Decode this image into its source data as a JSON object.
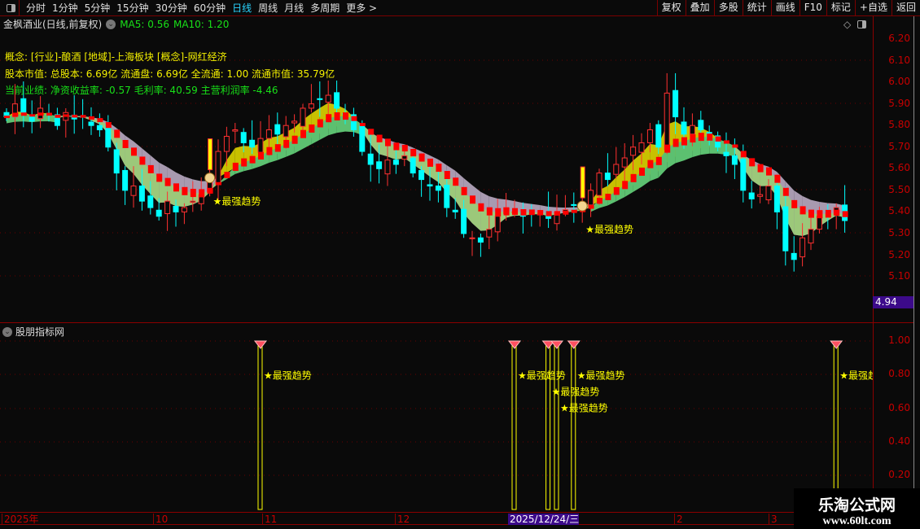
{
  "toolbar": {
    "periods": [
      "分时",
      "1分钟",
      "5分钟",
      "15分钟",
      "30分钟",
      "60分钟",
      "日线",
      "周线",
      "月线",
      "多周期",
      "更多 >"
    ],
    "active": "日线",
    "actions": [
      "复权",
      "叠加",
      "多股",
      "统计",
      "画线",
      "F10",
      "标记",
      "+自选",
      "返回"
    ]
  },
  "header": {
    "title": "金枫酒业(日线,前复权)",
    "ma5": "MA5: 0.56",
    "ma10": "MA10: 1.20"
  },
  "info": {
    "concept": "概念: [行业]-酿酒 [地域]-上海板块 [概念]-网红经济",
    "capital": "股本市值: 总股本: 6.69亿 流通盘: 6.69亿 全流通: 1.00 流通市值: 35.79亿",
    "performance": "当前业绩: 净资收益率: -0.57 毛利率: 40.59 主营利润率 -4.46"
  },
  "price_axis": [
    "6.20",
    "6.10",
    "6.00",
    "5.90",
    "5.80",
    "5.70",
    "5.60",
    "5.50",
    "5.40",
    "5.30",
    "5.20",
    "5.10"
  ],
  "current_price": "4.94",
  "indicator": {
    "title": "股朋指标网",
    "axis": [
      "1.00",
      "0.80",
      "0.60",
      "0.40",
      "0.20"
    ],
    "signal_label": "★最强趋势"
  },
  "time_axis": [
    {
      "label": "2025年"
    },
    {
      "label": "10"
    },
    {
      "label": "11"
    },
    {
      "label": "12"
    },
    {
      "label": "2025/12/24/三",
      "highlight": true
    },
    {
      "label": "2"
    },
    {
      "label": "3"
    }
  ],
  "watermark": {
    "name": "乐淘公式网",
    "url": "www.60lt.com"
  },
  "colors": {
    "up": "#ff3030",
    "down": "#00ffff",
    "ma": "#ff0000",
    "ribbon_up": "#c8c000",
    "ribbon_down": "#a89ab0",
    "ribbon_base": "#9cc87a",
    "signal": "#ffff00"
  },
  "chart_data": {
    "type": "candlestick",
    "ylim": [
      5.05,
      6.25
    ],
    "closes": [
      5.84,
      5.9,
      5.86,
      5.82,
      5.88,
      5.85,
      5.8,
      5.86,
      5.83,
      5.84,
      5.8,
      5.78,
      5.7,
      5.58,
      5.5,
      5.52,
      5.45,
      5.42,
      5.38,
      5.45,
      5.4,
      5.42,
      5.45,
      5.48,
      5.55,
      5.68,
      5.75,
      5.78,
      5.72,
      5.7,
      5.74,
      5.78,
      5.76,
      5.8,
      5.82,
      5.88,
      5.9,
      5.92,
      5.94,
      5.88,
      5.85,
      5.78,
      5.68,
      5.62,
      5.6,
      5.64,
      5.62,
      5.66,
      5.58,
      5.55,
      5.52,
      5.5,
      5.42,
      5.4,
      5.3,
      5.28,
      5.26,
      5.32,
      5.38,
      5.42,
      5.4,
      5.38,
      5.4,
      5.39,
      5.37,
      5.4,
      5.41,
      5.43,
      5.42,
      5.5,
      5.58,
      5.55,
      5.62,
      5.65,
      5.7,
      5.72,
      5.78,
      5.7,
      5.95,
      5.84,
      5.76,
      5.8,
      5.78,
      5.74,
      5.7,
      5.66,
      5.62,
      5.5,
      5.46,
      5.48,
      5.52,
      5.4,
      5.22,
      5.18,
      5.28,
      5.32,
      5.38,
      5.4,
      5.42,
      5.36
    ],
    "buy_markers": [
      24,
      68
    ],
    "signals": [
      30,
      60,
      64,
      65,
      67,
      98
    ],
    "indicator_ylim": [
      0,
      1.1
    ]
  }
}
